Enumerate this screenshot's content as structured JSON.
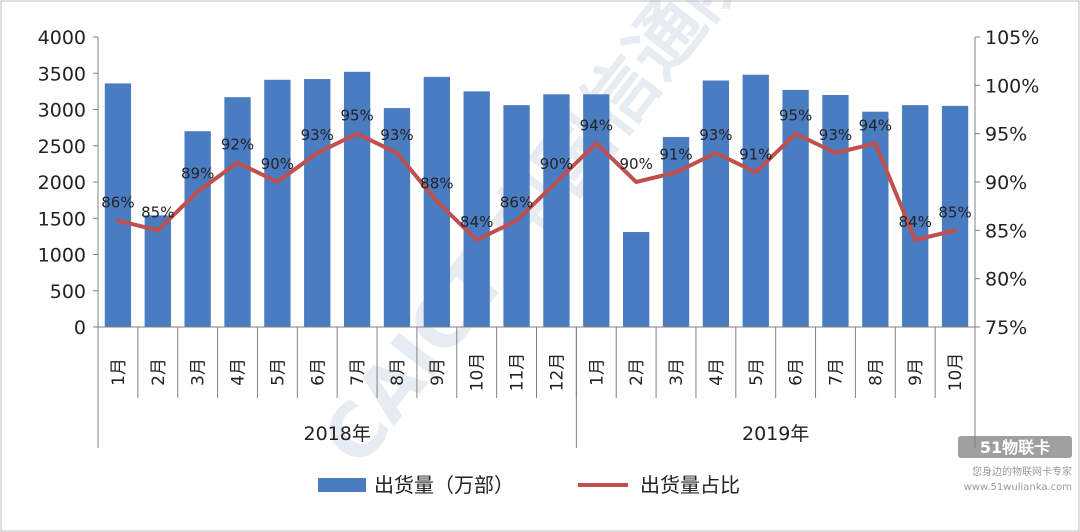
{
  "chart_data": {
    "type": "bar",
    "categories": [
      "1月",
      "2月",
      "3月",
      "4月",
      "5月",
      "6月",
      "7月",
      "8月",
      "9月",
      "10月",
      "11月",
      "12月",
      "1月",
      "2月",
      "3月",
      "4月",
      "5月",
      "6月",
      "7月",
      "8月",
      "9月",
      "10月"
    ],
    "groups": [
      {
        "label": "2018年",
        "count": 12
      },
      {
        "label": "2019年",
        "count": 10
      }
    ],
    "series": [
      {
        "name": "出货量（万部）",
        "type": "bar",
        "axis": "left",
        "color": "#4a7cc2",
        "values": [
          3360,
          1540,
          2700,
          3170,
          3410,
          3420,
          3520,
          3020,
          3450,
          3250,
          3060,
          3210,
          3210,
          1310,
          2620,
          3400,
          3480,
          3270,
          3200,
          2970,
          3060,
          3050
        ]
      },
      {
        "name": "出货量占比",
        "type": "line",
        "axis": "right",
        "color": "#c0504d",
        "values": [
          86,
          85,
          89,
          92,
          90,
          93,
          95,
          93,
          88,
          84,
          86,
          90,
          94,
          90,
          91,
          93,
          91,
          95,
          93,
          94,
          84,
          85
        ],
        "labels": [
          "86%",
          "85%",
          "89%",
          "92%",
          "90%",
          "93%",
          "95%",
          "93%",
          "88%",
          "84%",
          "86%",
          "90%",
          "94%",
          "90%",
          "91%",
          "93%",
          "91%",
          "95%",
          "93%",
          "94%",
          "84%",
          "85%"
        ]
      }
    ],
    "y_left": {
      "min": 0,
      "max": 4000,
      "ticks": [
        "0",
        "500",
        "1000",
        "1500",
        "2000",
        "2500",
        "3000",
        "3500",
        "4000"
      ]
    },
    "y_right": {
      "min": 75,
      "max": 105,
      "ticks": [
        "75%",
        "80%",
        "85%",
        "90%",
        "95%",
        "100%",
        "105%"
      ]
    },
    "grid": false,
    "legend_position": "bottom"
  },
  "watermark": {
    "text": "CAICT 中国信通院",
    "logo_text": "51物联卡",
    "logo_sub1": "您身边的物联网卡专家",
    "logo_sub2": "www.51wulianka.com"
  }
}
